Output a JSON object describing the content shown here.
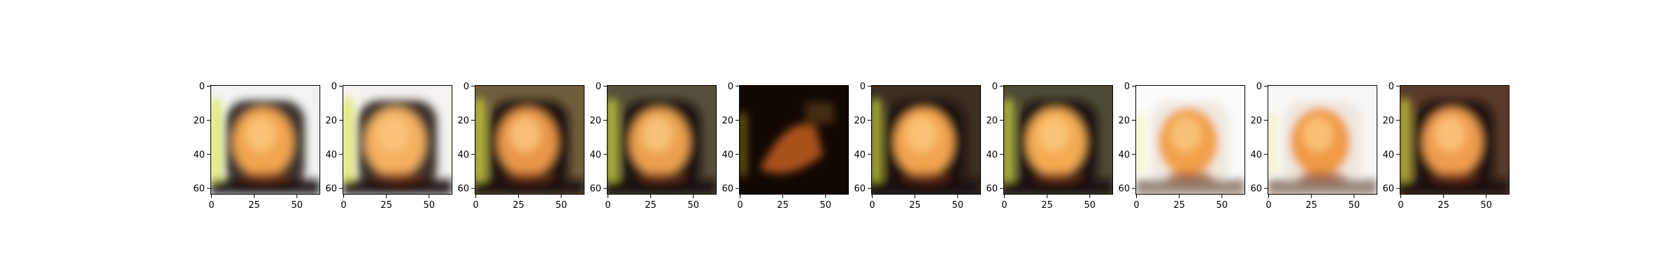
{
  "figure": {
    "panel_count": 10,
    "image_extent": [
      0,
      63
    ],
    "x_ticks": [
      0,
      25,
      50
    ],
    "y_ticks": [
      0,
      20,
      40,
      60
    ],
    "panels": [
      {
        "name": "panel-1",
        "variant": "green-yellow-edge",
        "bg": "#f2f4f4",
        "face": "#f2a44f"
      },
      {
        "name": "panel-2",
        "variant": "light",
        "bg": "#f5f2ee",
        "face": "#f4b060"
      },
      {
        "name": "panel-3",
        "variant": "dark-frame",
        "bg": "#6f5d3c",
        "face": "#e8964a"
      },
      {
        "name": "panel-4",
        "variant": "dark-frame",
        "bg": "#55503a",
        "face": "#eaa04f"
      },
      {
        "name": "panel-5",
        "variant": "very-dark",
        "bg": "#120803",
        "face": "#b85a1c"
      },
      {
        "name": "panel-6",
        "variant": "dark-frame",
        "bg": "#3b2f22",
        "face": "#f2a44f"
      },
      {
        "name": "panel-7",
        "variant": "dark-frame",
        "bg": "#4d4a35",
        "face": "#f3aa52"
      },
      {
        "name": "panel-8",
        "variant": "white",
        "bg": "#fbfbfb",
        "face": "#f1a04c"
      },
      {
        "name": "panel-9",
        "variant": "white",
        "bg": "#f8f7f7",
        "face": "#ef9a45"
      },
      {
        "name": "panel-10",
        "variant": "dark-frame",
        "bg": "#5a3b2b",
        "face": "#ef9c50"
      }
    ]
  }
}
